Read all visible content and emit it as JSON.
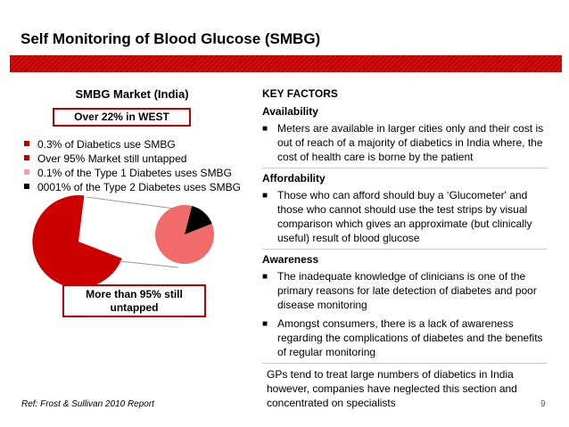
{
  "title": "Self Monitoring of Blood Glucose (SMBG)",
  "colors": {
    "brand_red": "#c00000",
    "pie_dark": "#cc0000",
    "pie_light": "#f26b6b"
  },
  "left": {
    "heading": "SMBG Market (India)",
    "west_box": "Over 22% in WEST",
    "stats": [
      {
        "text": "0.3% of Diabetics use SMBG",
        "bullet_color": "#c00000"
      },
      {
        "text": "Over 95% Market still untapped",
        "bullet_color": "#c00000"
      },
      {
        "text": "0.1% of the Type 1 Diabetes uses SMBG",
        "bullet_color": "#f4a0a0"
      },
      {
        "text": "0001% of the Type 2 Diabetes uses SMBG",
        "bullet_color": "#000000"
      }
    ],
    "callout": "More than 95% still untapped",
    "small_pie": {
      "slices": [
        {
          "label": "light",
          "fraction": 0.85
        },
        {
          "label": "black",
          "fraction": 0.15
        }
      ]
    }
  },
  "right": {
    "heading": "KEY FACTORS",
    "sections": [
      {
        "title": "Availability",
        "items": [
          "Meters are available in larger cities only and their cost is out of reach of a majority of diabetics in India where, the cost of health care is borne by the patient"
        ]
      },
      {
        "title": "Affordability",
        "items": [
          "Those who can afford should buy a ‘Glucometer' and those who cannot should use the test strips by visual comparison which gives an approximate (but clinically useful) result of blood glucose"
        ]
      },
      {
        "title": "Awareness",
        "items": [
          "The inadequate knowledge of clinicians is one of the primary reasons for late detection of diabetes and poor disease monitoring",
          "Amongst consumers, there is a lack of awareness regarding the complications of diabetes and the benefits of regular monitoring"
        ]
      }
    ],
    "bullet_glyph": "■",
    "note": "GPs tend to treat large numbers of diabetics in India however, companies have neglected this section and concentrated on specialists"
  },
  "footer": {
    "reference": "Ref: Frost & Sullivan 2010 Report",
    "page_number": "9"
  }
}
